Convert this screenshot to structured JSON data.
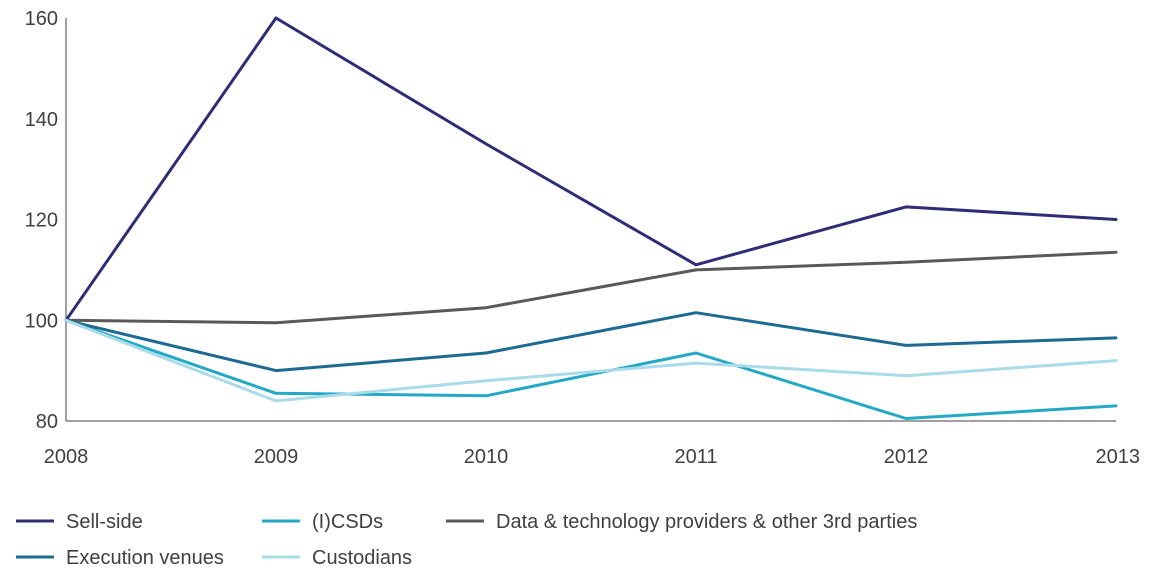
{
  "chart_data": {
    "type": "line",
    "title": "",
    "xlabel": "",
    "ylabel": "",
    "categories": [
      "2008",
      "2009",
      "2010",
      "2011",
      "2012",
      "2013"
    ],
    "ylim": [
      80,
      160
    ],
    "yticks": [
      80,
      100,
      120,
      140,
      160
    ],
    "grid": false,
    "legend_position": "bottom",
    "series": [
      {
        "name": "Sell-side",
        "color": "#2e2d76",
        "values": [
          100,
          160,
          135,
          111,
          122.5,
          120
        ]
      },
      {
        "name": "(I)CSDs",
        "color": "#23a9c6",
        "values": [
          100,
          85.5,
          85,
          93.5,
          80.5,
          83
        ]
      },
      {
        "name": "Data & technology providers & other 3rd parties",
        "color": "#595959",
        "values": [
          100,
          99.5,
          102.5,
          110,
          111.5,
          113.5
        ]
      },
      {
        "name": "Execution venues",
        "color": "#1d6a92",
        "values": [
          100,
          90,
          93.5,
          101.5,
          95,
          96.5
        ]
      },
      {
        "name": "Custodians",
        "color": "#a9dce8",
        "values": [
          100,
          84,
          88,
          91.5,
          89,
          92
        ]
      }
    ]
  }
}
